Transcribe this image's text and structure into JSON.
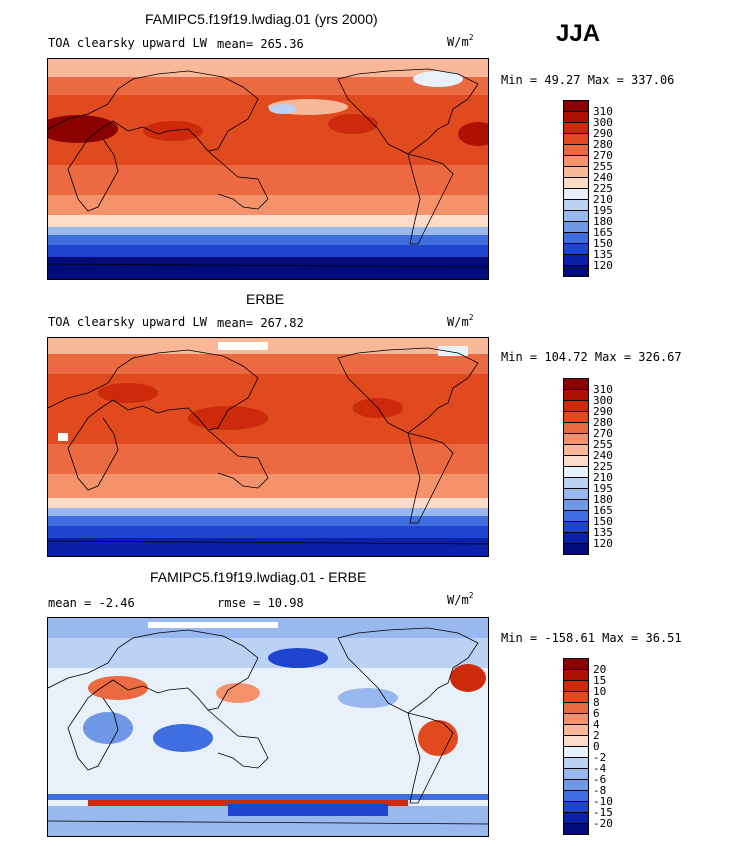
{
  "season": "JJA",
  "chart_data": [
    {
      "type": "heatmap",
      "title": "FAMIPC5.f19f19.lwdiag.01 (yrs 2000)",
      "field": "TOA clearsky upward LW",
      "mean_label": "mean= 265.36",
      "mean": 265.36,
      "units_base": "W/m",
      "units_exp": "2",
      "minmax_label": "Min =  49.27 Max = 337.06",
      "min": 49.27,
      "max": 337.06,
      "levels": [
        "310",
        "300",
        "290",
        "280",
        "270",
        "255",
        "240",
        "225",
        "210",
        "195",
        "180",
        "165",
        "150",
        "135",
        "120"
      ],
      "colors": [
        "#8b0000",
        "#b01000",
        "#cc2a0a",
        "#e04a1e",
        "#ec6a42",
        "#f4926c",
        "#f9b898",
        "#fcdcc8",
        "#e8f0fa",
        "#bcd2f4",
        "#98b8ee",
        "#6e98e6",
        "#3e6ee0",
        "#1e44d0",
        "#0a20a8",
        "#000c7a"
      ]
    },
    {
      "type": "heatmap",
      "title": "ERBE",
      "field": "TOA clearsky upward LW",
      "mean_label": "mean= 267.82",
      "mean": 267.82,
      "units_base": "W/m",
      "units_exp": "2",
      "minmax_label": "Min = 104.72 Max = 326.67",
      "min": 104.72,
      "max": 326.67,
      "levels": [
        "310",
        "300",
        "290",
        "280",
        "270",
        "255",
        "240",
        "225",
        "210",
        "195",
        "180",
        "165",
        "150",
        "135",
        "120"
      ],
      "colors": [
        "#8b0000",
        "#b01000",
        "#cc2a0a",
        "#e04a1e",
        "#ec6a42",
        "#f4926c",
        "#f9b898",
        "#fcdcc8",
        "#e8f0fa",
        "#bcd2f4",
        "#98b8ee",
        "#6e98e6",
        "#3e6ee0",
        "#1e44d0",
        "#0a20a8",
        "#000c7a"
      ]
    },
    {
      "type": "heatmap",
      "title": "FAMIPC5.f19f19.lwdiag.01 - ERBE",
      "mean_label": "mean =   -2.46",
      "mean": -2.46,
      "rmse_label": "rmse =   10.98",
      "rmse": 10.98,
      "units_base": "W/m",
      "units_exp": "2",
      "minmax_label": "Min = -158.61 Max =  36.51",
      "min": -158.61,
      "max": 36.51,
      "levels": [
        "20",
        "15",
        "10",
        "8",
        "6",
        "4",
        "2",
        "0",
        "-2",
        "-4",
        "-6",
        "-8",
        "-10",
        "-15",
        "-20"
      ],
      "colors": [
        "#8b0000",
        "#b01000",
        "#cc2a0a",
        "#e04a1e",
        "#ec6a42",
        "#f4926c",
        "#f9b898",
        "#fcdcc8",
        "#e8f0fa",
        "#bcd2f4",
        "#98b8ee",
        "#6e98e6",
        "#3e6ee0",
        "#1e44d0",
        "#0a20a8",
        "#000c7a"
      ]
    }
  ]
}
